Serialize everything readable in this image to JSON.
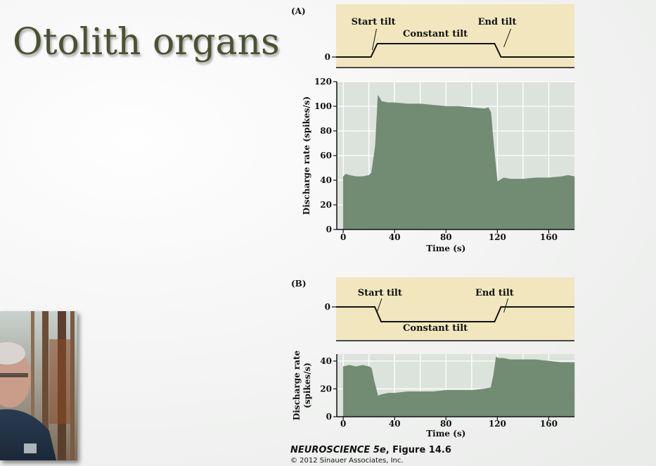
{
  "slide": {
    "title": "Otolith organs"
  },
  "credit": {
    "book": "NEUROSCIENCE 5e",
    "figure": ", Figure 14.6",
    "copyright": "© 2012 Sinauer Associates, Inc."
  },
  "colors": {
    "title": "#4b5233",
    "tilt_panel_bg": "#f1e6bd",
    "plot_bg": "#dce3dc",
    "fill": "#728c74",
    "grid": "#ffffff"
  },
  "chart_data": [
    {
      "id": "A",
      "type": "area",
      "panel_label": "(A)",
      "tilt_trace": {
        "zero_label": "0",
        "direction": "up",
        "points": [
          [
            -5,
            0
          ],
          [
            22,
            0
          ],
          [
            27,
            1
          ],
          [
            118,
            1
          ],
          [
            123,
            0
          ],
          [
            180,
            0
          ]
        ],
        "annotations": [
          {
            "text": "Start tilt",
            "x": 24
          },
          {
            "text": "Constant tilt",
            "x": 72
          },
          {
            "text": "End tilt",
            "x": 120
          }
        ]
      },
      "xlabel": "Time (s)",
      "ylabel": "Discharge rate (spikes/s)",
      "xlim": [
        -5,
        180
      ],
      "ylim": [
        0,
        120
      ],
      "xticks": [
        0,
        40,
        80,
        120,
        160
      ],
      "yticks": [
        0,
        20,
        40,
        60,
        80,
        100,
        120
      ],
      "grid": true,
      "x": [
        0,
        2,
        5,
        10,
        15,
        20,
        22,
        25,
        27,
        30,
        35,
        40,
        50,
        60,
        70,
        80,
        90,
        100,
        110,
        113,
        115,
        117,
        120,
        125,
        130,
        140,
        150,
        160,
        170,
        175,
        180
      ],
      "y": [
        43,
        45,
        44,
        43,
        43,
        44,
        46,
        68,
        109,
        104,
        103,
        103,
        102,
        102,
        101,
        100,
        100,
        99,
        98,
        99,
        95,
        70,
        39,
        42,
        41,
        41,
        42,
        42,
        43,
        44,
        43
      ]
    },
    {
      "id": "B",
      "type": "area",
      "panel_label": "(B)",
      "tilt_trace": {
        "zero_label": "0",
        "direction": "down",
        "points": [
          [
            -5,
            0
          ],
          [
            25,
            0
          ],
          [
            30,
            -1
          ],
          [
            118,
            -1
          ],
          [
            123,
            0
          ],
          [
            180,
            0
          ]
        ],
        "annotations": [
          {
            "text": "Start tilt",
            "x": 29
          },
          {
            "text": "Constant tilt",
            "x": 72
          },
          {
            "text": "End tilt",
            "x": 118
          }
        ]
      },
      "xlabel": "Time (s)",
      "ylabel": "Discharge rate (spikes/s)",
      "xlim": [
        -5,
        180
      ],
      "ylim": [
        0,
        45
      ],
      "xticks": [
        0,
        40,
        80,
        120,
        160
      ],
      "yticks": [
        0,
        20,
        40
      ],
      "grid": true,
      "x": [
        0,
        5,
        10,
        15,
        20,
        22,
        24,
        27,
        30,
        35,
        40,
        50,
        60,
        70,
        80,
        90,
        100,
        110,
        115,
        117,
        119,
        121,
        125,
        130,
        140,
        150,
        160,
        170,
        180
      ],
      "y": [
        36,
        37,
        36,
        37,
        36,
        35,
        26,
        15,
        16,
        17,
        17,
        18,
        18,
        18,
        19,
        19,
        19,
        20,
        21,
        30,
        43,
        42,
        42,
        41,
        41,
        41,
        40,
        39,
        39
      ]
    }
  ]
}
